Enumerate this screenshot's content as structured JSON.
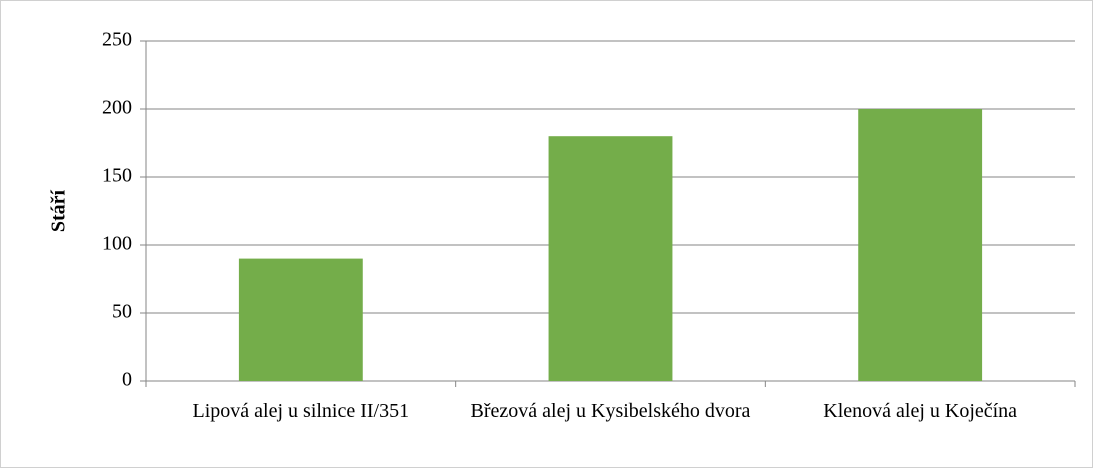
{
  "chart_data": {
    "type": "bar",
    "y_label": "Stáří",
    "categories": [
      "Lipová alej u silnice II/351",
      "Březová alej u Kysibelského dvora",
      "Klenová alej u Koječína"
    ],
    "values": [
      90,
      180,
      200
    ],
    "color": "#74ad4a",
    "ylim": [
      0,
      250
    ],
    "yticks": [
      0,
      50,
      100,
      150,
      200,
      250
    ],
    "grid": true
  }
}
